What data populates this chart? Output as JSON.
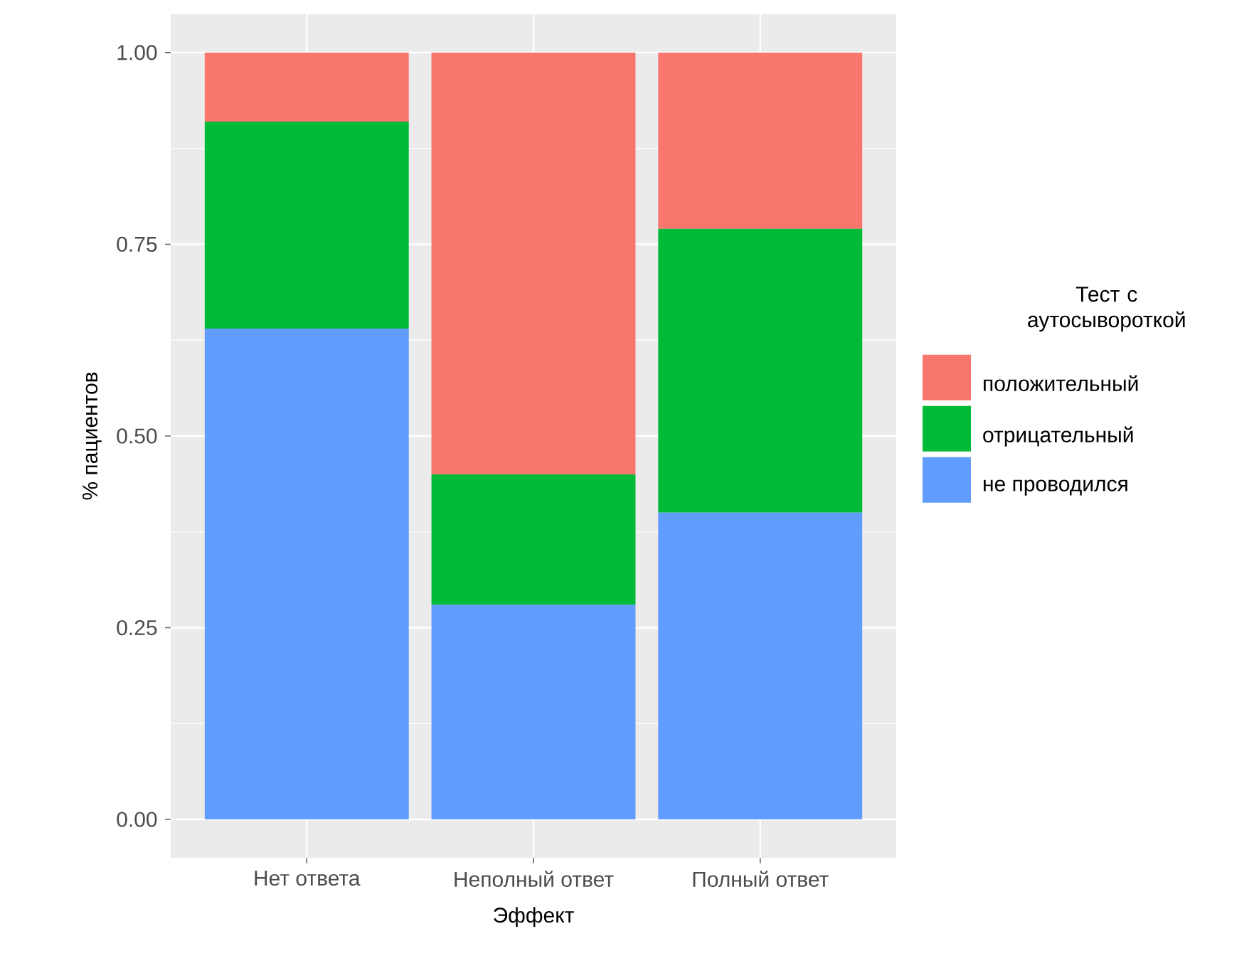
{
  "chart_data": {
    "type": "bar",
    "stacked": true,
    "xlabel": "Эффект",
    "ylabel": "% пациентов",
    "legend_title": "Тест с аутосывороткой",
    "categories": [
      "Нет ответа",
      "Неполный ответ",
      "Полный ответ"
    ],
    "series": [
      {
        "name": "не проводился",
        "color": "#619cff",
        "values": [
          0.64,
          0.28,
          0.4
        ]
      },
      {
        "name": "отрицательный",
        "color": "#00ba38",
        "values": [
          0.27,
          0.17,
          0.37
        ]
      },
      {
        "name": "положительный",
        "color": "#f8766d",
        "values": [
          0.09,
          0.55,
          0.23
        ]
      }
    ],
    "ylim": [
      -0.05,
      1.05
    ],
    "yticks": [
      {
        "value": 0,
        "label": "0.00"
      },
      {
        "value": 0.25,
        "label": "0.25"
      },
      {
        "value": 0.5,
        "label": "0.50"
      },
      {
        "value": 0.75,
        "label": "0.75"
      },
      {
        "value": 1,
        "label": "1.00"
      }
    ],
    "grid": true,
    "legend": "right"
  }
}
